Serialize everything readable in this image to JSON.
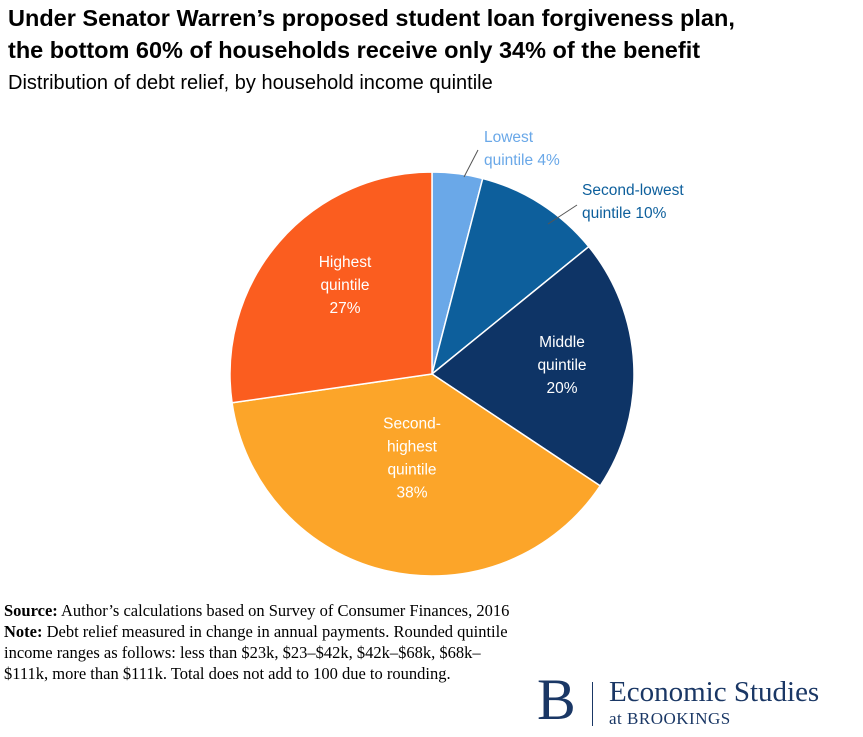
{
  "header": {
    "title_line1": "Under Senator Warren’s proposed student loan forgiveness plan,",
    "title_line2": "the bottom 60% of households receive only 34% of the benefit",
    "subtitle": "Distribution of debt relief, by household income quintile"
  },
  "chart_data": {
    "type": "pie",
    "title": "Under Senator Warren’s proposed student loan forgiveness plan, the bottom 60% of households receive only 34% of the benefit",
    "subtitle": "Distribution of debt relief, by household income quintile",
    "start_angle_deg": 0,
    "direction": "clockwise",
    "slices": [
      {
        "label": "Lowest quintile",
        "value": 4,
        "color": "#6aa8e8",
        "label_lines": [
          "Lowest",
          "quintile 4%"
        ],
        "label_color": "#6aa8e8",
        "label_position": "outside"
      },
      {
        "label": "Second-lowest quintile",
        "value": 10,
        "color": "#0d5f9c",
        "label_lines": [
          "Second-lowest",
          "quintile 10%"
        ],
        "label_color": "#0d5f9c",
        "label_position": "outside"
      },
      {
        "label": "Middle quintile",
        "value": 20,
        "color": "#0e3466",
        "label_lines": [
          "Middle",
          "quintile",
          "20%"
        ],
        "label_color": "#ffffff",
        "label_position": "inside"
      },
      {
        "label": "Second-highest quintile",
        "value": 38,
        "color": "#fca529",
        "label_lines": [
          "Second-",
          "highest",
          "quintile",
          "38%"
        ],
        "label_color": "#ffffff",
        "label_position": "inside"
      },
      {
        "label": "Highest quintile",
        "value": 27,
        "color": "#fb5d1f",
        "label_lines": [
          "Highest",
          "quintile",
          "27%"
        ],
        "label_color": "#ffffff",
        "label_position": "inside"
      }
    ]
  },
  "footnote": {
    "source_label": "Source:",
    "source_text": " Author’s calculations based on Survey of Consumer Finances, 2016",
    "note_label": "Note:",
    "note_text": " Debt relief measured in change in annual payments. Rounded quintile income ranges as follows: less than $23k, $23–$42k, $42k–$68k, $68k–$111k, more than $111k. Total does not add to 100 due to rounding."
  },
  "brand": {
    "logo_letter": "B",
    "name": "Economic Studies",
    "sub": "at BROOKINGS"
  }
}
